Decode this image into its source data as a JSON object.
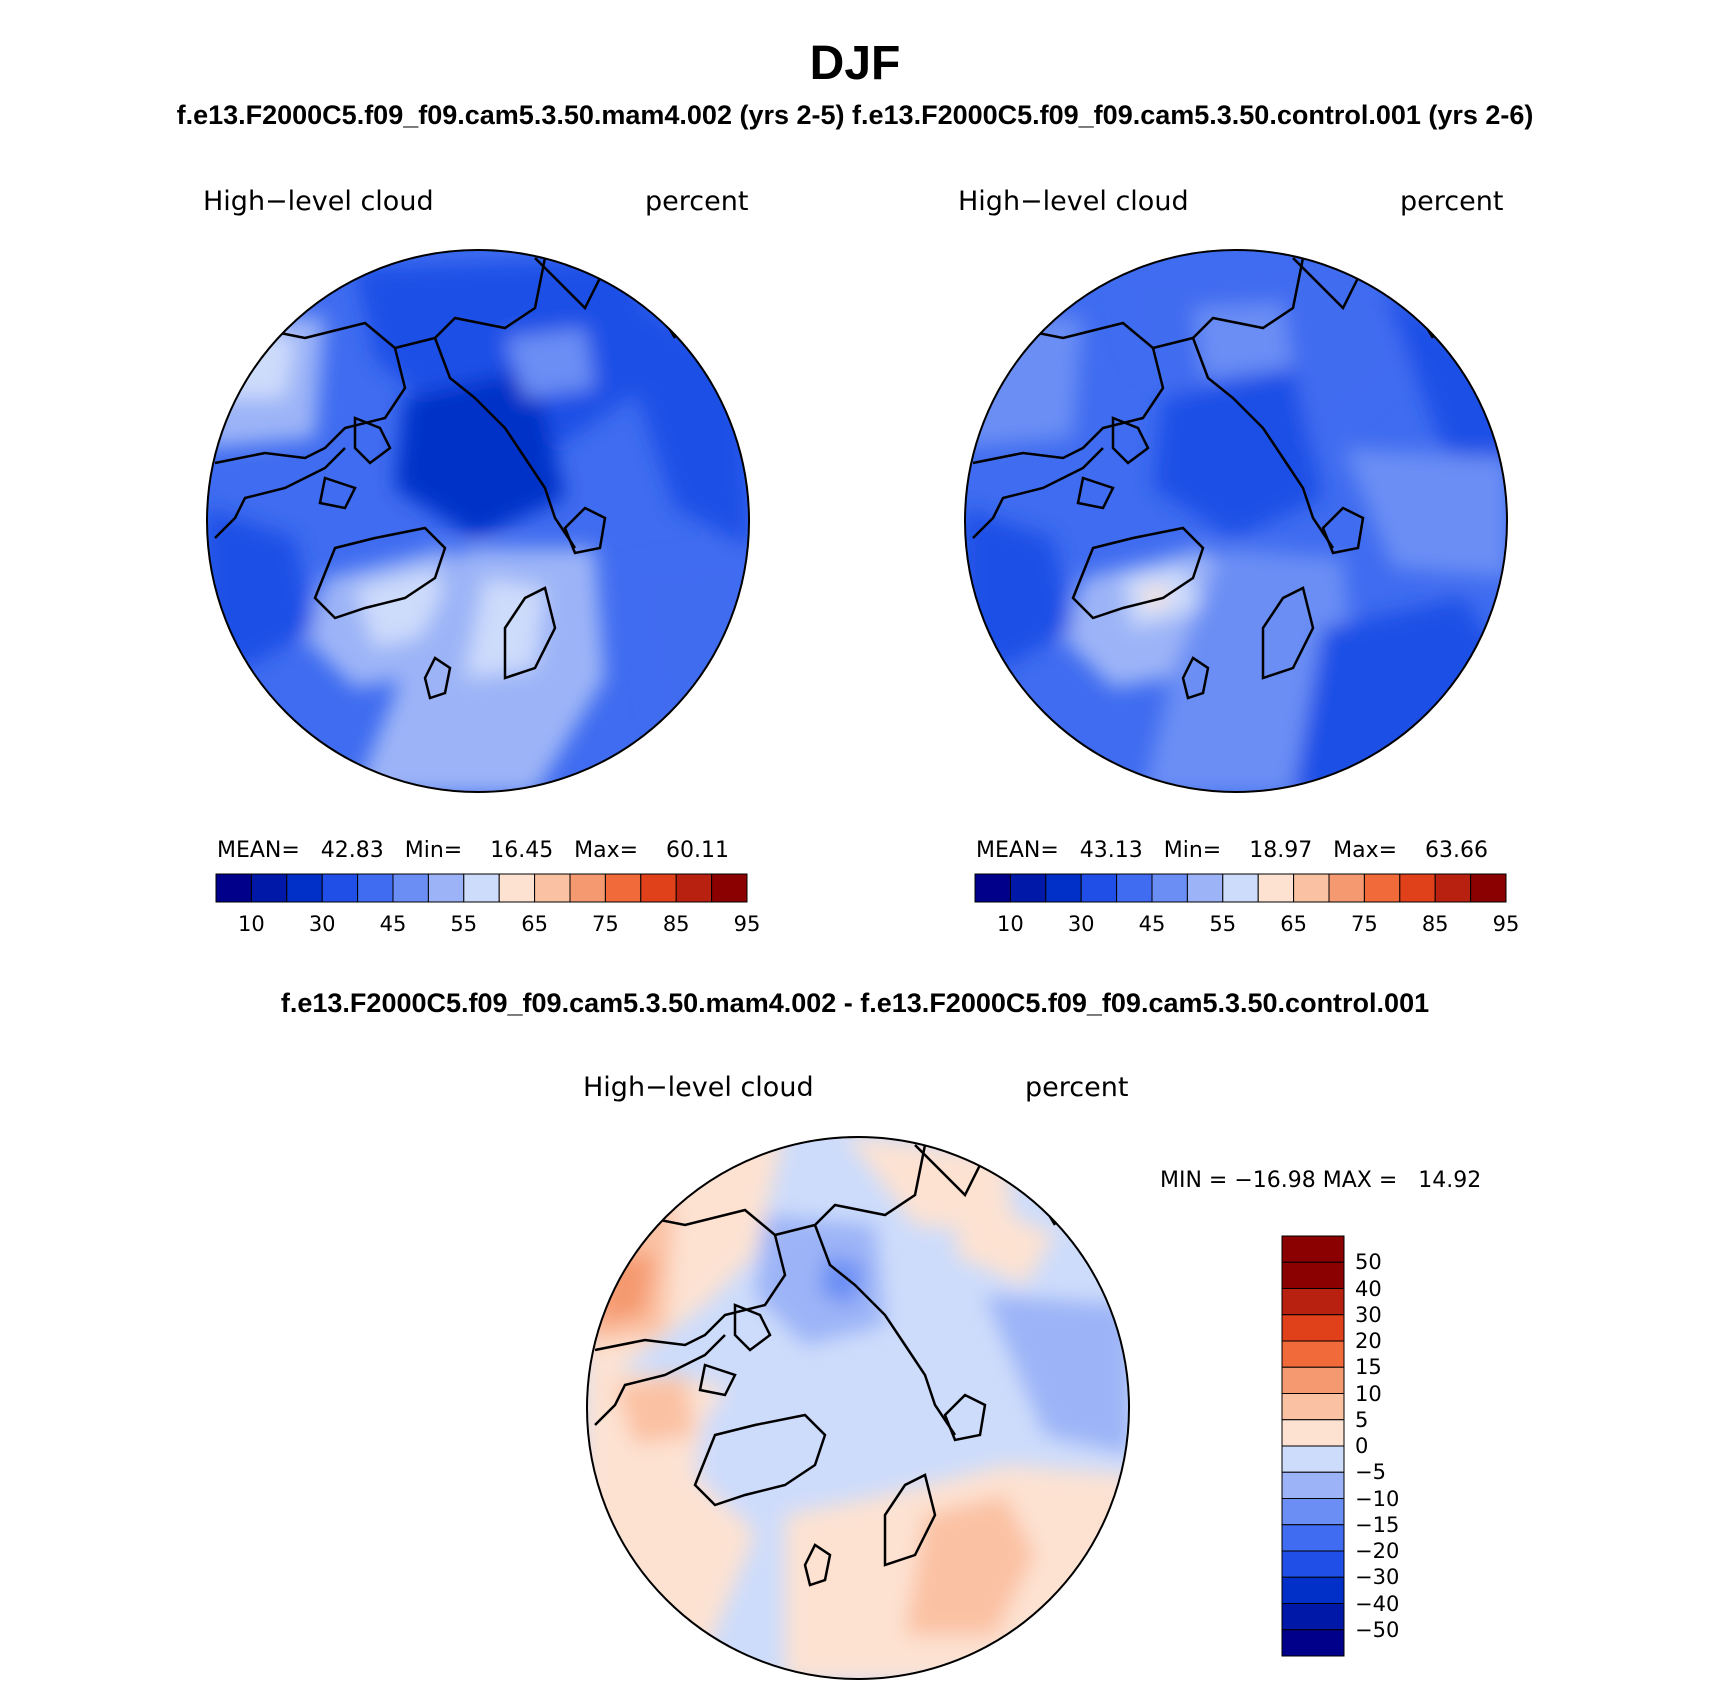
{
  "figure": {
    "title": "DJF",
    "subtitle_left": "f.e13.F2000C5.f09_f09.cam5.3.50.mam4.002 (yrs 2-5)",
    "subtitle_right": "f.e13.F2000C5.f09_f09.cam5.3.50.control.001 (yrs 2-6)",
    "diff_title": "f.e13.F2000C5.f09_f09.cam5.3.50.mam4.002 - f.e13.F2000C5.f09_f09.cam5.3.50.control.001"
  },
  "panels": [
    {
      "variable": "High−level cloud",
      "units": "percent",
      "stats_text": "MEAN=   42.83   Min=    16.45   Max=    60.11",
      "mean": 42.83,
      "min": 16.45,
      "max": 60.11
    },
    {
      "variable": "High−level cloud",
      "units": "percent",
      "stats_text": "MEAN=   43.13   Min=    18.97   Max=    63.66",
      "mean": 43.13,
      "min": 18.97,
      "max": 63.66
    }
  ],
  "diff_panel": {
    "variable": "High−level cloud",
    "units": "percent",
    "minmax_text": "MIN = −16.98 MAX =   14.92",
    "min": -16.98,
    "max": 14.92
  },
  "colorbar_main": {
    "colors": [
      "#00008b",
      "#0018a8",
      "#0030c8",
      "#1f4fe6",
      "#3f6cf0",
      "#6a8ef4",
      "#9cb4f7",
      "#cddcfb",
      "#fde2d2",
      "#fbc1a3",
      "#f59a70",
      "#f06a3a",
      "#e0401a",
      "#b82010",
      "#8b0000"
    ],
    "tick_labels": [
      "10",
      "30",
      "45",
      "55",
      "65",
      "75",
      "85",
      "95"
    ]
  },
  "colorbar_diff": {
    "colors": [
      "#00008b",
      "#0018a8",
      "#0030c8",
      "#1f4fe6",
      "#3f6cf0",
      "#6a8ef4",
      "#9cb4f7",
      "#cddcfb",
      "#fde2d2",
      "#fbc1a3",
      "#f59a70",
      "#f06a3a",
      "#e0401a",
      "#b82010",
      "#8b0000"
    ],
    "tick_labels": [
      "50",
      "40",
      "30",
      "20",
      "15",
      "10",
      "5",
      "0",
      "−5",
      "−10",
      "−15",
      "−20",
      "−30",
      "−40",
      "−50"
    ]
  },
  "chart_data": [
    {
      "type": "heatmap",
      "title": "High−level cloud (mam4.002, yrs 2-5)",
      "units": "percent",
      "projection": "north-polar stereographic",
      "contour_levels": [
        5,
        10,
        20,
        30,
        40,
        45,
        50,
        55,
        60,
        65,
        70,
        75,
        80,
        85,
        90,
        95
      ],
      "mean": 42.83,
      "min": 16.45,
      "max": 60.11
    },
    {
      "type": "heatmap",
      "title": "High−level cloud (control.001, yrs 2-6)",
      "units": "percent",
      "projection": "north-polar stereographic",
      "contour_levels": [
        5,
        10,
        20,
        30,
        40,
        45,
        50,
        55,
        60,
        65,
        70,
        75,
        80,
        85,
        90,
        95
      ],
      "mean": 43.13,
      "min": 18.97,
      "max": 63.66
    },
    {
      "type": "heatmap",
      "title": "High−level cloud difference (mam4.002 - control.001)",
      "units": "percent",
      "projection": "north-polar stereographic",
      "contour_levels": [
        -50,
        -40,
        -30,
        -20,
        -15,
        -10,
        -5,
        0,
        5,
        10,
        15,
        20,
        30,
        40,
        50
      ],
      "min": -16.98,
      "max": 14.92
    }
  ]
}
